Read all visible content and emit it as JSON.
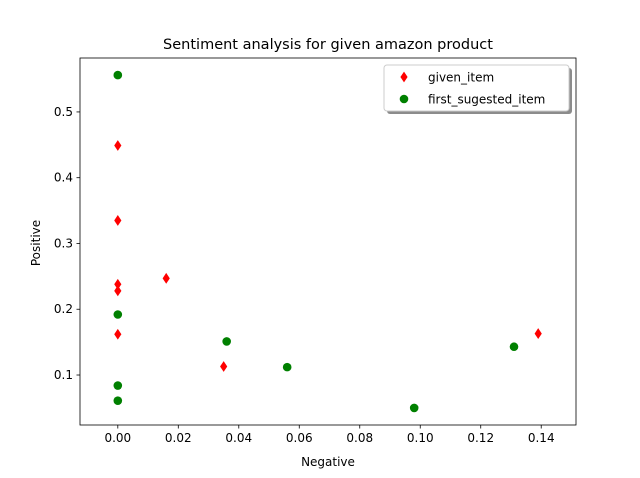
{
  "chart_data": {
    "type": "scatter",
    "title": "Sentiment analysis for given amazon product",
    "xlabel": "Negative",
    "ylabel": "Positive",
    "xlim": [
      -0.0125,
      0.1515
    ],
    "ylim": [
      0.024,
      0.582
    ],
    "xticks": [
      0.0,
      0.02,
      0.04,
      0.06,
      0.08,
      0.1,
      0.12,
      0.14
    ],
    "xtick_labels": [
      "0.00",
      "0.02",
      "0.04",
      "0.06",
      "0.08",
      "0.10",
      "0.12",
      "0.14"
    ],
    "yticks": [
      0.1,
      0.2,
      0.3,
      0.4,
      0.5
    ],
    "ytick_labels": [
      "0.1",
      "0.2",
      "0.3",
      "0.4",
      "0.5"
    ],
    "grid": false,
    "legend_position": "upper right",
    "series": [
      {
        "name": "given_item",
        "marker": "diamond",
        "color": "#ff0000",
        "points": [
          {
            "x": 0.0,
            "y": 0.449
          },
          {
            "x": 0.0,
            "y": 0.335
          },
          {
            "x": 0.0,
            "y": 0.238
          },
          {
            "x": 0.0,
            "y": 0.228
          },
          {
            "x": 0.0,
            "y": 0.162
          },
          {
            "x": 0.016,
            "y": 0.247
          },
          {
            "x": 0.035,
            "y": 0.113
          },
          {
            "x": 0.139,
            "y": 0.163
          }
        ]
      },
      {
        "name": "first_sugested_item",
        "marker": "circle",
        "color": "#008000",
        "points": [
          {
            "x": 0.0,
            "y": 0.556
          },
          {
            "x": 0.0,
            "y": 0.192
          },
          {
            "x": 0.0,
            "y": 0.084
          },
          {
            "x": 0.0,
            "y": 0.061
          },
          {
            "x": 0.036,
            "y": 0.151
          },
          {
            "x": 0.056,
            "y": 0.112
          },
          {
            "x": 0.098,
            "y": 0.05
          },
          {
            "x": 0.131,
            "y": 0.143
          }
        ]
      }
    ]
  }
}
